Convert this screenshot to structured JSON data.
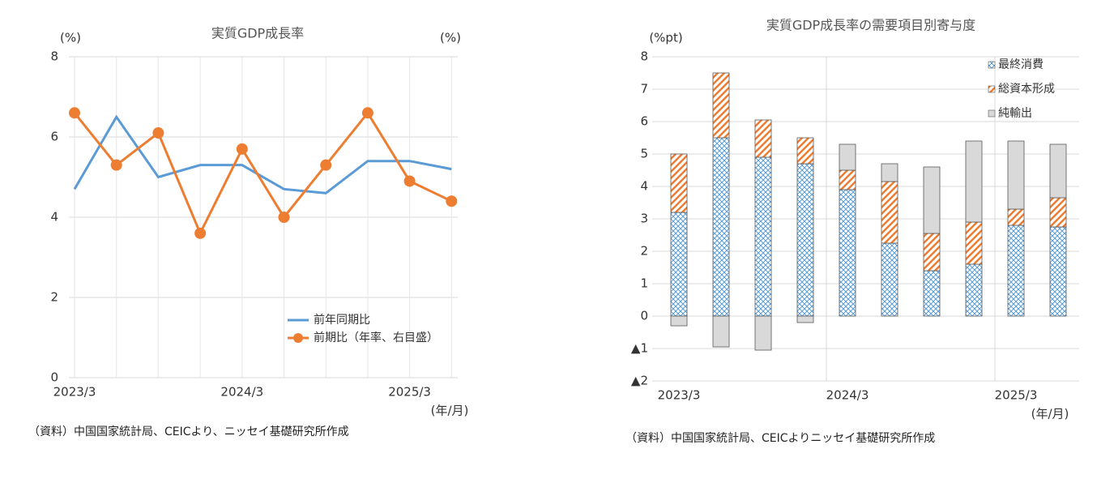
{
  "chart_data": [
    {
      "type": "line",
      "title": "実質GDP成長率",
      "ylabel": "(%)",
      "y2label": "(%)",
      "xlabel": "(年/月)",
      "note": "（資料）中国国家統計局、CEICより、ニッセイ基礎研究所作成",
      "categories": [
        "2023/3",
        null,
        null,
        null,
        "2024/3",
        null,
        null,
        null,
        "2025/3",
        null
      ],
      "ylim": [
        0,
        8
      ],
      "yticks": [
        0,
        2,
        4,
        6,
        8
      ],
      "y2lim": [
        0,
        8
      ],
      "grid": true,
      "series": [
        {
          "name": "前年同期比",
          "color": "#5b9bd5",
          "values": [
            4.7,
            6.5,
            5.0,
            5.3,
            5.3,
            4.7,
            4.6,
            5.4,
            5.4,
            5.2
          ]
        },
        {
          "name": "前期比（年率、右目盛）",
          "color": "#ed7d31",
          "axis": "y2",
          "marker": "circle",
          "values": [
            6.6,
            5.3,
            6.1,
            3.6,
            5.7,
            4.0,
            5.3,
            6.6,
            4.9,
            4.4
          ]
        }
      ]
    },
    {
      "type": "stacked_bar",
      "title": "実質GDP成長率の需要項目別寄与度",
      "ylabel": "(%pt)",
      "xlabel": "(年/月)",
      "note": "（資料）中国国家統計局、CEICよりニッセイ基礎研究所作成",
      "categories": [
        "2023/3",
        null,
        null,
        null,
        "2024/3",
        null,
        null,
        null,
        "2025/3",
        null
      ],
      "ylim": [
        -2,
        8
      ],
      "yticks": [
        {
          "value": -2,
          "label": "▲2"
        },
        {
          "value": -1,
          "label": "▲1"
        },
        0,
        1,
        2,
        3,
        4,
        5,
        6,
        7,
        8
      ],
      "grid": true,
      "series": [
        {
          "name": "最終消費",
          "color": "#5b9bd5",
          "pattern": "crosshatch",
          "values": [
            3.2,
            5.5,
            4.9,
            4.7,
            3.9,
            2.25,
            1.4,
            1.6,
            2.8,
            2.75
          ]
        },
        {
          "name": "総資本形成",
          "color": "#ed7d31",
          "pattern": "stripes",
          "values": [
            1.8,
            2.0,
            1.15,
            0.8,
            0.6,
            1.9,
            1.15,
            1.3,
            0.5,
            0.9
          ]
        },
        {
          "name": "純輸出",
          "color": "#d9d9d9",
          "pattern": "solid",
          "values": [
            -0.3,
            -0.95,
            -1.05,
            -0.2,
            0.8,
            0.55,
            2.05,
            2.5,
            2.1,
            1.65
          ]
        }
      ]
    }
  ]
}
